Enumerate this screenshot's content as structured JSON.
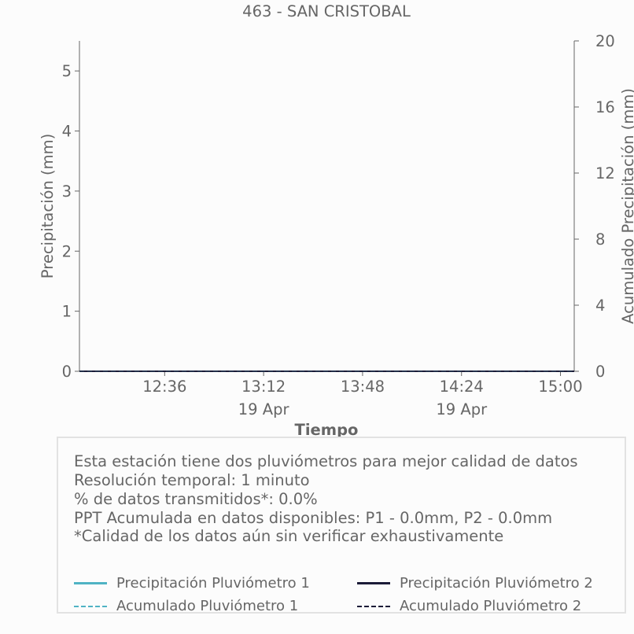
{
  "chart_data": {
    "type": "line",
    "title": "463 - SAN CRISTOBAL",
    "xlabel": "Tiempo",
    "ylabel": "Precipitación (mm)",
    "y2label": "Acumulado Precipitación (mm)",
    "x_ticks": [
      {
        "time": "12:36",
        "date": ""
      },
      {
        "time": "13:12",
        "date": "19 Apr"
      },
      {
        "time": "13:48",
        "date": ""
      },
      {
        "time": "14:24",
        "date": "19 Apr"
      },
      {
        "time": "15:00",
        "date": ""
      }
    ],
    "xlim": [
      "12:05",
      "15:05"
    ],
    "ylim": [
      0,
      5.5
    ],
    "y2lim": [
      0,
      20
    ],
    "y_ticks": [
      0,
      1,
      2,
      3,
      4,
      5
    ],
    "y2_ticks": [
      0,
      4,
      8,
      12,
      16,
      20
    ],
    "grid": false,
    "series": [
      {
        "name": "Precipitación Pluviómetro 1",
        "axis": "left",
        "style": "solid",
        "color": "#4fb3c4",
        "x": [
          "12:05",
          "15:05"
        ],
        "values": [
          0,
          0
        ]
      },
      {
        "name": "Precipitación Pluviómetro 2",
        "axis": "left",
        "style": "solid",
        "color": "#1c1c38",
        "x": [
          "12:05",
          "15:05"
        ],
        "values": [
          0,
          0
        ]
      },
      {
        "name": "Acumulado Pluviómetro 1",
        "axis": "right",
        "style": "dashed",
        "color": "#4fb3c4",
        "x": [
          "12:05",
          "15:05"
        ],
        "values": [
          0,
          0
        ]
      },
      {
        "name": "Acumulado Pluviómetro 2",
        "axis": "right",
        "style": "dashed",
        "color": "#1c1c38",
        "x": [
          "12:05",
          "15:05"
        ],
        "values": [
          0,
          0
        ]
      }
    ]
  },
  "info": {
    "line1": "Esta estación tiene dos pluviómetros para mejor calidad de datos",
    "line2": "Resolución temporal: 1 minuto",
    "line3": "% de datos transmitidos*: 0.0%",
    "line4": "PPT Acumulada en datos disponibles: P1 - 0.0mm, P2 - 0.0mm",
    "line5": "*Calidad de los datos aún sin verificar exhaustivamente"
  },
  "legend": [
    {
      "label": "Precipitación Pluviómetro 1"
    },
    {
      "label": "Precipitación Pluviómetro 2"
    },
    {
      "label": "Acumulado Pluviómetro 1"
    },
    {
      "label": "Acumulado Pluviómetro 2"
    }
  ],
  "colors": {
    "series1": "#4fb3c4",
    "series2": "#1c1c38",
    "text": "#666666",
    "axis": "#666666"
  }
}
